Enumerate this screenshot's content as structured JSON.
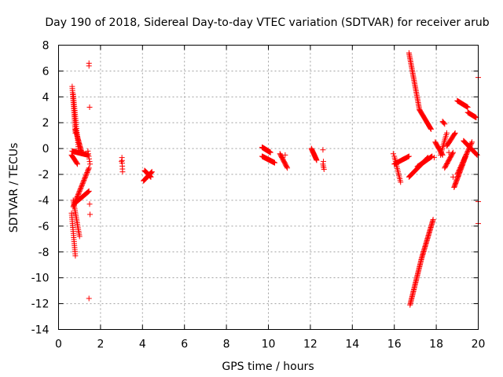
{
  "chart_data": {
    "type": "scatter",
    "title": "Day 190 of 2018, Sidereal Day-to-day VTEC variation (SDTVAR) for receiver arub",
    "xlabel": "GPS time / hours",
    "ylabel": "SDTVAR / TECUs",
    "xlim": [
      0,
      20
    ],
    "ylim": [
      -14,
      8
    ],
    "xticks": [
      0,
      2,
      4,
      6,
      8,
      10,
      12,
      14,
      16,
      18,
      20
    ],
    "yticks": [
      -14,
      -12,
      -10,
      -8,
      -6,
      -4,
      -2,
      0,
      2,
      4,
      6,
      8
    ],
    "grid": true,
    "marker": "+",
    "color": "#ff0000",
    "segments": [
      {
        "x0": 0.65,
        "x1": 0.8,
        "y0": 4.8,
        "y1": 1.2,
        "n": 24
      },
      {
        "x0": 0.7,
        "x1": 0.95,
        "y0": 4.2,
        "y1": 0.0,
        "n": 28
      },
      {
        "x0": 0.8,
        "x1": 1.1,
        "y0": 1.5,
        "y1": -0.3,
        "n": 24
      },
      {
        "x0": 0.65,
        "x1": 1.4,
        "y0": -0.2,
        "y1": -0.5,
        "n": 30
      },
      {
        "x0": 0.62,
        "x1": 0.9,
        "y0": -0.5,
        "y1": -1.2,
        "n": 12
      },
      {
        "x0": 0.62,
        "x1": 0.8,
        "y0": -5.0,
        "y1": -8.3,
        "n": 22
      },
      {
        "x0": 0.7,
        "x1": 1.0,
        "y0": -4.0,
        "y1": -6.8,
        "n": 22
      },
      {
        "x0": 0.7,
        "x1": 1.45,
        "y0": -4.5,
        "y1": -1.5,
        "n": 36
      },
      {
        "x0": 0.8,
        "x1": 1.45,
        "y0": -4.2,
        "y1": -3.3,
        "n": 26
      },
      {
        "x0": 1.4,
        "x1": 1.5,
        "y0": -0.2,
        "y1": -1.2,
        "n": 6
      },
      {
        "x0": 3.02,
        "x1": 3.05,
        "y0": -0.7,
        "y1": -1.8,
        "n": 6
      },
      {
        "x0": 4.05,
        "x1": 4.45,
        "y0": -2.5,
        "y1": -1.8,
        "n": 20
      },
      {
        "x0": 4.1,
        "x1": 4.4,
        "y0": -1.7,
        "y1": -2.2,
        "n": 14
      },
      {
        "x0": 9.7,
        "x1": 10.1,
        "y0": 0.1,
        "y1": -0.3,
        "n": 30
      },
      {
        "x0": 9.7,
        "x1": 10.3,
        "y0": -0.6,
        "y1": -1.1,
        "n": 30
      },
      {
        "x0": 10.55,
        "x1": 10.9,
        "y0": -0.4,
        "y1": -1.5,
        "n": 16
      },
      {
        "x0": 12.05,
        "x1": 12.3,
        "y0": 0.0,
        "y1": -0.9,
        "n": 16
      },
      {
        "x0": 12.6,
        "x1": 12.65,
        "y0": -1.2,
        "y1": -1.6,
        "n": 4
      },
      {
        "x0": 16.0,
        "x1": 16.3,
        "y0": -0.6,
        "y1": -2.6,
        "n": 16
      },
      {
        "x0": 16.0,
        "x1": 16.7,
        "y0": -1.2,
        "y1": -0.6,
        "n": 20
      },
      {
        "x0": 16.7,
        "x1": 17.2,
        "y0": 7.4,
        "y1": 3.0,
        "n": 40
      },
      {
        "x0": 17.2,
        "x1": 17.75,
        "y0": 3.0,
        "y1": 1.5,
        "n": 26
      },
      {
        "x0": 16.7,
        "x1": 17.6,
        "y0": -2.2,
        "y1": -0.7,
        "n": 36
      },
      {
        "x0": 17.1,
        "x1": 17.8,
        "y0": -1.4,
        "y1": -0.6,
        "n": 28
      },
      {
        "x0": 16.75,
        "x1": 17.3,
        "y0": -12.1,
        "y1": -8.5,
        "n": 40
      },
      {
        "x0": 17.3,
        "x1": 17.85,
        "y0": -8.5,
        "y1": -5.5,
        "n": 36
      },
      {
        "x0": 17.95,
        "x1": 18.3,
        "y0": 0.5,
        "y1": -0.5,
        "n": 16
      },
      {
        "x0": 18.2,
        "x1": 18.5,
        "y0": -0.5,
        "y1": 1.2,
        "n": 14
      },
      {
        "x0": 18.5,
        "x1": 18.9,
        "y0": 0.2,
        "y1": 1.2,
        "n": 16
      },
      {
        "x0": 18.4,
        "x1": 18.8,
        "y0": -1.5,
        "y1": -0.3,
        "n": 16
      },
      {
        "x0": 18.85,
        "x1": 19.4,
        "y0": -3.0,
        "y1": -0.6,
        "n": 32
      },
      {
        "x0": 19.0,
        "x1": 19.7,
        "y0": -2.0,
        "y1": 0.5,
        "n": 30
      },
      {
        "x0": 19.3,
        "x1": 19.95,
        "y0": 0.6,
        "y1": -0.5,
        "n": 26
      },
      {
        "x0": 19.0,
        "x1": 19.5,
        "y0": 3.7,
        "y1": 3.2,
        "n": 20
      },
      {
        "x0": 19.5,
        "x1": 19.9,
        "y0": 2.8,
        "y1": 2.4,
        "n": 16
      },
      {
        "x0": 18.3,
        "x1": 18.4,
        "y0": 2.1,
        "y1": 1.9,
        "n": 4
      }
    ],
    "points": [
      [
        1.45,
        6.6
      ],
      [
        1.45,
        6.4
      ],
      [
        1.48,
        3.2
      ],
      [
        1.48,
        -4.3
      ],
      [
        1.5,
        -5.1
      ],
      [
        1.45,
        -11.6
      ],
      [
        3.0,
        -1.0
      ],
      [
        10.8,
        -0.5
      ],
      [
        12.6,
        -0.1
      ],
      [
        12.62,
        -1.0
      ],
      [
        15.95,
        -0.4
      ],
      [
        17.9,
        -0.7
      ],
      [
        18.6,
        -0.3
      ],
      [
        18.8,
        -2.2
      ],
      [
        20.0,
        5.5
      ],
      [
        20.0,
        -4.1
      ],
      [
        20.0,
        -5.8
      ]
    ]
  }
}
